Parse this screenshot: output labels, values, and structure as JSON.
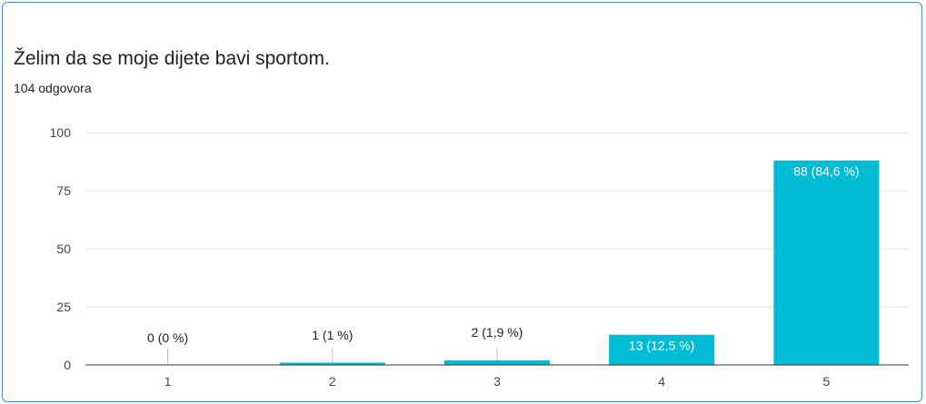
{
  "question": {
    "title": "Želim da se moje dijete bavi sportom.",
    "responses": "104 odgovora"
  },
  "chart_data": {
    "type": "bar",
    "title": "Želim da se moje dijete bavi sportom.",
    "subtitle": "104 odgovora",
    "categories": [
      "1",
      "2",
      "3",
      "4",
      "5"
    ],
    "values": [
      0,
      1,
      2,
      13,
      88
    ],
    "labels": [
      "0 (0 %)",
      "1 (1 %)",
      "2 (1,9 %)",
      "13 (12,5 %)",
      "88 (84,6 %)"
    ],
    "ylim": [
      0,
      100
    ],
    "yticks": [
      0,
      25,
      50,
      75,
      100
    ],
    "grid": true,
    "legend": "none",
    "bar_color": "#00bcd4",
    "label_inside_bar_color": "#ffffff",
    "label_outside_bar_color": "#202124"
  }
}
